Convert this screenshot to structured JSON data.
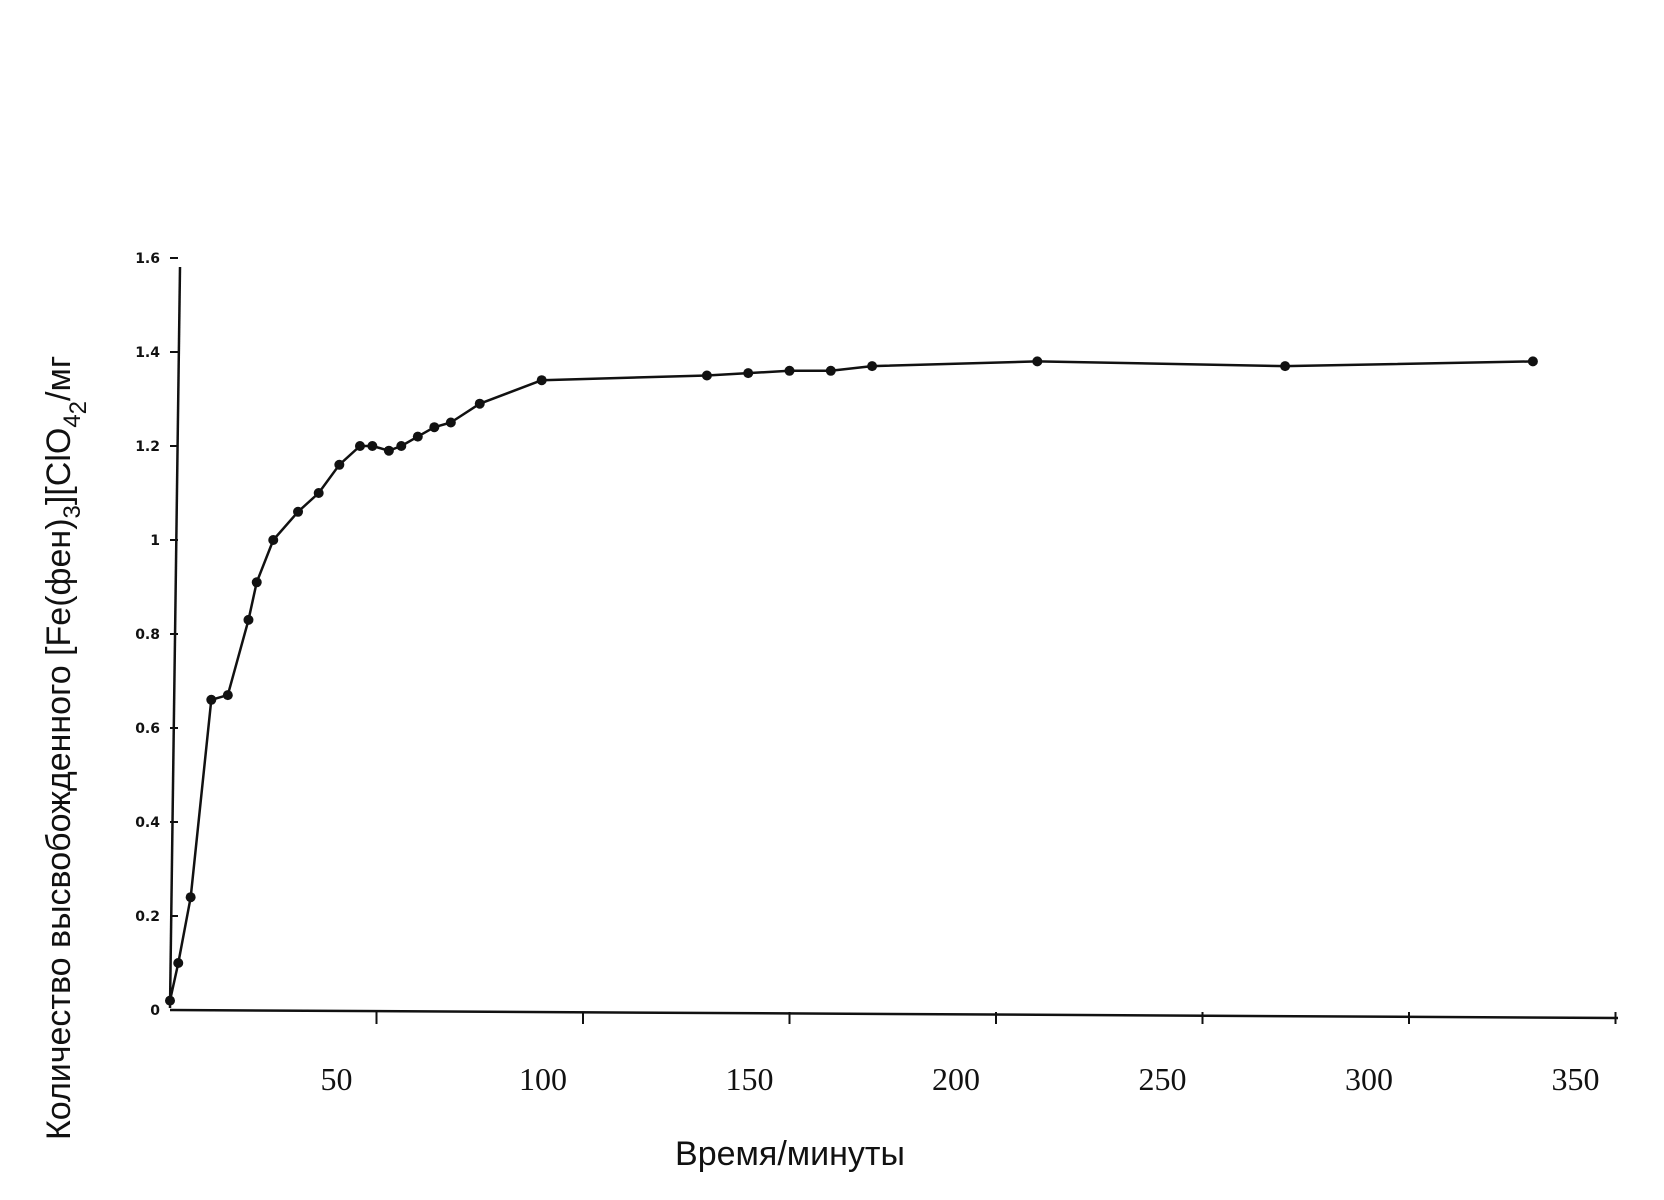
{
  "chart_data": {
    "type": "line",
    "title": "",
    "xlabel": "Время/минуты",
    "ylabel": "Количество высвобожденного [Fe(фен)₃][ClO₄]₂/мг",
    "ylabel_parts": {
      "before_sub1": "Количество высвобожденного [Fe(фен)",
      "sub1": "3",
      "middle": "][ClO",
      "sub2": "4",
      "sub3": "2",
      "after": "/мг"
    },
    "xlim": [
      0,
      350
    ],
    "ylim": [
      0,
      1.6
    ],
    "x_ticks": [
      50,
      100,
      150,
      200,
      250,
      300,
      350
    ],
    "x_tick_labels": [
      "50",
      "100",
      "150",
      "200",
      "250",
      "300",
      "350"
    ],
    "y_ticks": [
      0,
      0.2,
      0.4,
      0.6,
      0.8,
      1.0,
      1.2,
      1.4,
      1.6
    ],
    "y_tick_labels": [
      "0",
      "0.2",
      "0.4",
      "0.6",
      "0.8",
      "1",
      "1.2",
      "1.4",
      "1.6"
    ],
    "grid": false,
    "series": [
      {
        "x": [
          0,
          2,
          5,
          10,
          14,
          19,
          21,
          25,
          31,
          36,
          41,
          46,
          49,
          53,
          56,
          60,
          64,
          68,
          75,
          90,
          130,
          140,
          150,
          160,
          170,
          210,
          270,
          330
        ],
        "y": [
          0.02,
          0.1,
          0.24,
          0.66,
          0.67,
          0.83,
          0.91,
          1.0,
          1.06,
          1.1,
          1.16,
          1.2,
          1.2,
          1.19,
          1.2,
          1.22,
          1.24,
          1.25,
          1.29,
          1.34,
          1.35,
          1.355,
          1.36,
          1.36,
          1.37,
          1.38,
          1.37,
          1.38
        ]
      }
    ]
  }
}
